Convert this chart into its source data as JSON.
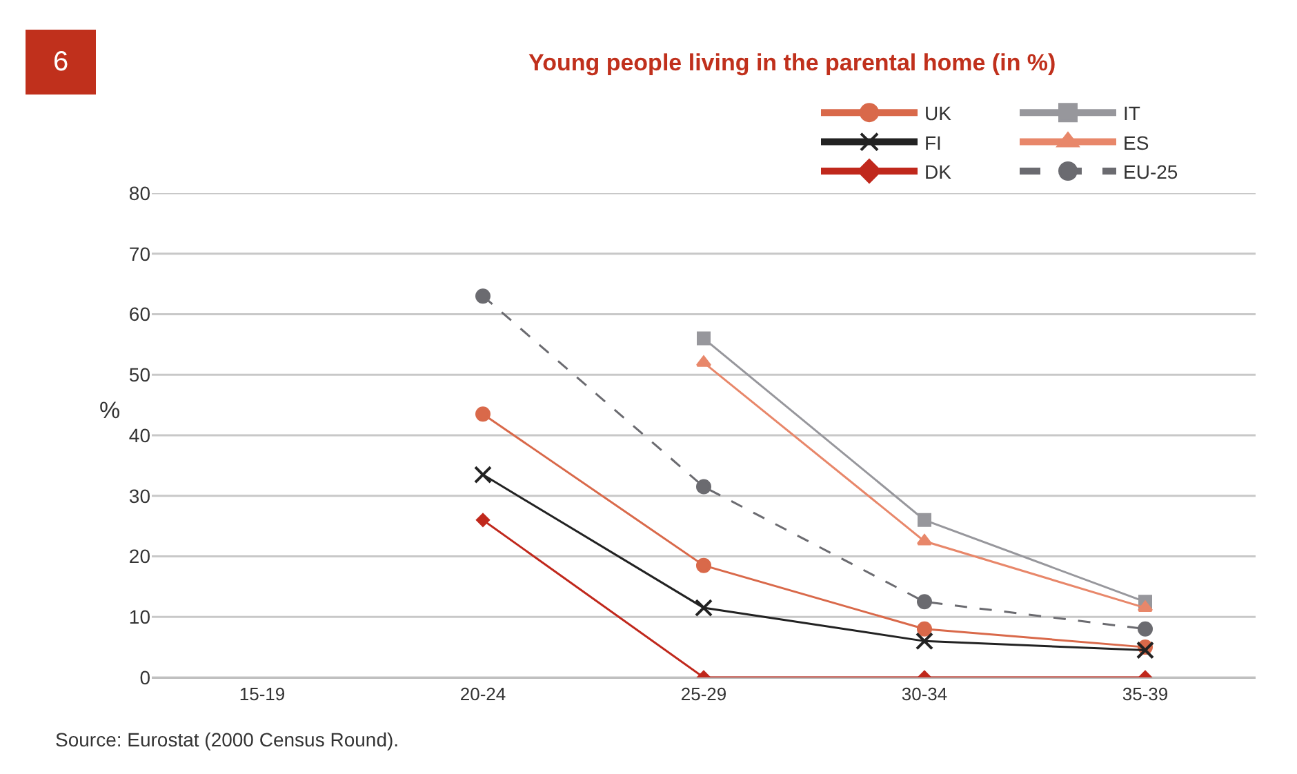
{
  "chart_data": {
    "type": "line",
    "title": "Young people living in the parental home (in %)",
    "subtitle": "6",
    "ylabel": "%",
    "categories": [
      "15-19",
      "20-24",
      "25-29",
      "30-34",
      "35-39"
    ],
    "series": [
      {
        "name": "UK",
        "color": "#d9694a",
        "marker": "circle",
        "values": [
          null,
          43.5,
          18.5,
          8,
          5
        ]
      },
      {
        "name": "FI",
        "color": "#222222",
        "marker": "cross",
        "values": [
          null,
          33.5,
          11.5,
          6,
          4.5
        ]
      },
      {
        "name": "DK",
        "color": "#c0281c",
        "marker": "diamond",
        "values": [
          null,
          26,
          0,
          0,
          0
        ]
      },
      {
        "name": "IT",
        "color": "#97979c",
        "marker": "square",
        "values": [
          null,
          null,
          56,
          26,
          12.5
        ]
      },
      {
        "name": "ES",
        "color": "#e8876a",
        "marker": "triangle",
        "values": [
          null,
          null,
          52,
          22.5,
          11.5
        ]
      },
      {
        "name": "EU-25",
        "color": "#6b6b70",
        "marker": "circle",
        "line_style": "dashed",
        "values": [
          null,
          63,
          31.5,
          12.5,
          8
        ]
      }
    ],
    "ylim": [
      0,
      80
    ],
    "yticks": [
      0,
      10,
      20,
      30,
      40,
      50,
      60,
      70,
      80
    ],
    "grid": "y",
    "legend": "top right",
    "annotations": [
      "Source: Eurostat (2000 Census Round)."
    ]
  }
}
